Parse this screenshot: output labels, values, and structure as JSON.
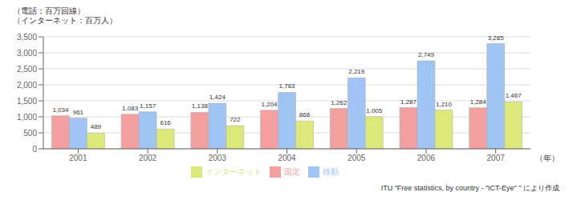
{
  "chart_data": {
    "type": "bar",
    "categories": [
      "2001",
      "2002",
      "2003",
      "2004",
      "2005",
      "2006",
      "2007"
    ],
    "series": [
      {
        "name": "固定",
        "color": "#f4a0a0",
        "values": [
          1034,
          1083,
          1138,
          1204,
          1262,
          1287,
          1284
        ],
        "value_labels": [
          "1,034",
          "1,083",
          "1,138",
          "1,204",
          "1,262",
          "1,287",
          "1,284"
        ]
      },
      {
        "name": "移動",
        "color": "#a0c4f4",
        "values": [
          961,
          1157,
          1424,
          1763,
          2219,
          2749,
          3285
        ],
        "value_labels": [
          "961",
          "1,157",
          "1,424",
          "1,763",
          "2,219",
          "2,749",
          "3,285"
        ]
      },
      {
        "name": "インターネット",
        "color": "#dde87a",
        "values": [
          489,
          616,
          722,
          868,
          1005,
          1210,
          1467
        ],
        "value_labels": [
          "489",
          "616",
          "722",
          "868",
          "1,005",
          "1,210",
          "1,467"
        ]
      }
    ],
    "x_label": "（年）",
    "y_label": [
      "（電話：百万回線）",
      "（インターネット：百万人）"
    ],
    "annotations": [
      "ITU \"Free statistics, by country - \"ICT-Eye\" \" により作成"
    ],
    "ylim": [
      0,
      3500
    ],
    "yticks": [
      0,
      500,
      {
        "value": 1000,
        "label": "1,000"
      },
      {
        "value": 1500,
        "label": "1,500"
      },
      {
        "value": 2000,
        "label": "2,000"
      },
      {
        "value": 2500,
        "label": "2,500"
      },
      {
        "value": 3000,
        "label": "3,000"
      },
      {
        "value": 3500,
        "label": "3,500"
      }
    ],
    "grid": true,
    "legend": "bottom",
    "data_labels": true
  }
}
